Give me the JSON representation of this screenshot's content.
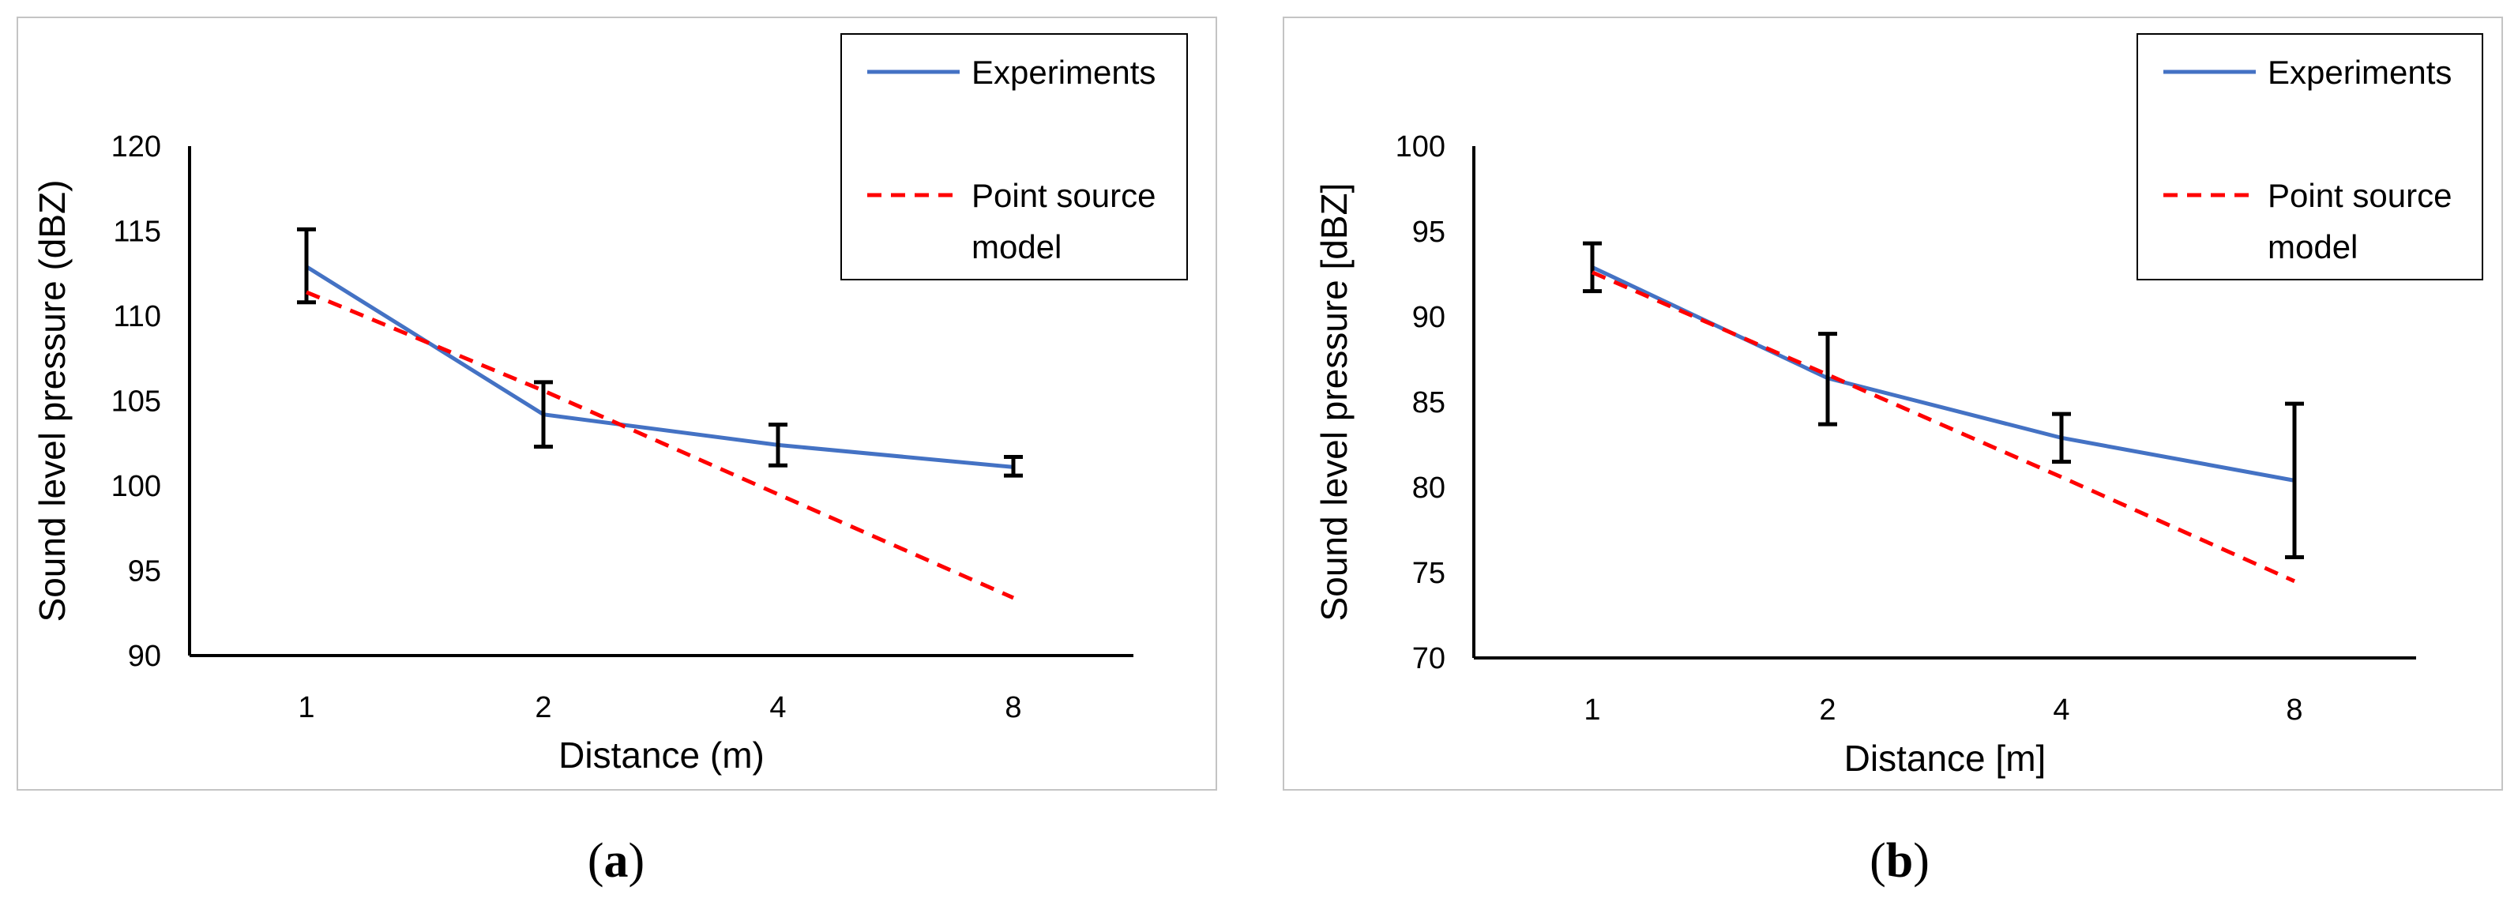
{
  "colors": {
    "experiments": "#4472C4",
    "model": "#FF0000",
    "error_bar": "#000000"
  },
  "chart_data": [
    {
      "type": "line",
      "caption_open": "(",
      "caption_letter": "a",
      "caption_close": ")",
      "categories": [
        "1",
        "2",
        "4",
        "8"
      ],
      "xlabel": "Distance (m)",
      "ylabel": "Sound level pressure (dBZ)",
      "ylim": [
        90,
        120
      ],
      "yticks": [
        "90",
        "95",
        "100",
        "105",
        "110",
        "115",
        "120"
      ],
      "legend_position": "top-right",
      "series": [
        {
          "name": "Experiments",
          "style": "solid",
          "values": [
            112.9,
            104.2,
            102.4,
            101.1
          ],
          "error_low": [
            110.8,
            102.3,
            101.2,
            100.6
          ],
          "error_high": [
            115.1,
            106.1,
            103.6,
            101.7
          ]
        },
        {
          "name_line1": "Point source",
          "name_line2": "model",
          "style": "dashed",
          "values": [
            111.4,
            105.6,
            99.5,
            93.4
          ]
        }
      ]
    },
    {
      "type": "line",
      "caption_open": "(",
      "caption_letter": "b",
      "caption_close": ")",
      "categories": [
        "1",
        "2",
        "4",
        "8"
      ],
      "xlabel": "Distance [m]",
      "ylabel": "Sound level pressure [dBZ]",
      "ylim": [
        70,
        100
      ],
      "yticks": [
        "70",
        "75",
        "80",
        "85",
        "90",
        "95",
        "100"
      ],
      "legend_position": "top-right",
      "series": [
        {
          "name": "Experiments",
          "style": "solid",
          "values": [
            92.9,
            86.4,
            82.9,
            80.4
          ],
          "error_low": [
            91.5,
            83.7,
            81.5,
            75.9
          ],
          "error_high": [
            94.3,
            89.0,
            84.3,
            84.9
          ]
        },
        {
          "name_line1": "Point source",
          "name_line2": "model",
          "style": "dashed",
          "values": [
            92.6,
            86.6,
            80.6,
            74.5
          ]
        }
      ]
    }
  ]
}
